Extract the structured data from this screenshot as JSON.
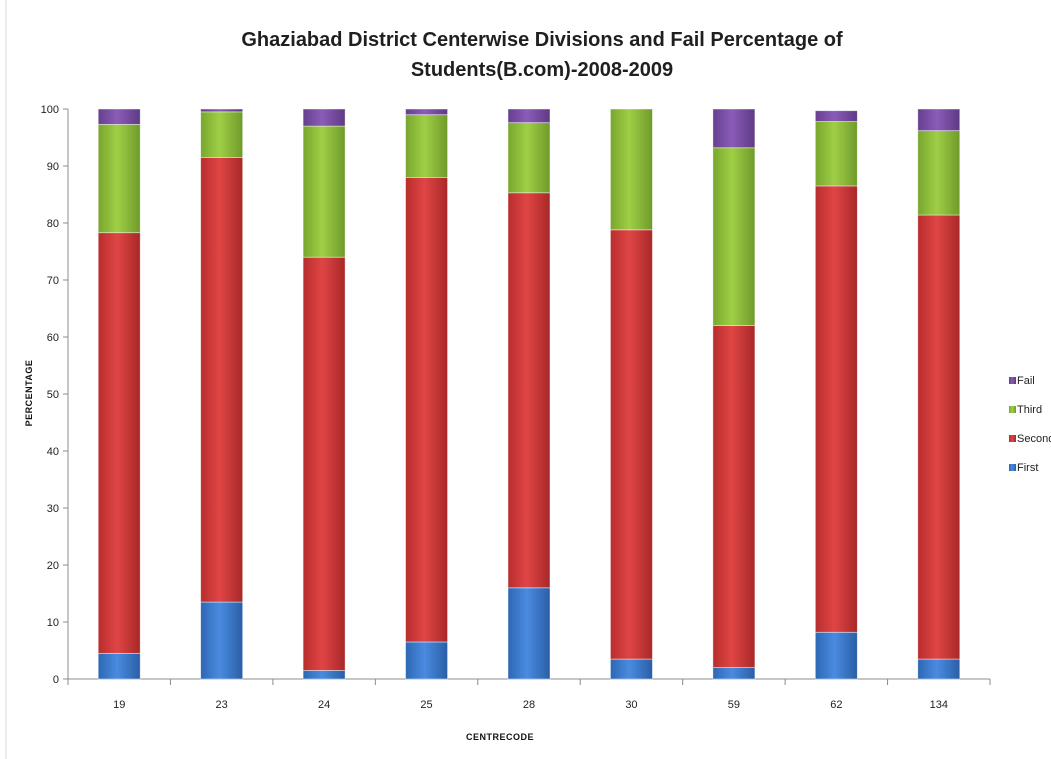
{
  "chart_data": {
    "type": "bar",
    "stacked": true,
    "title_line1": "Ghaziabad District Centerwise Divisions and Fail Percentage of",
    "title_line2": "Students(B.com)-2008-2009",
    "xlabel": "CENTRECODE",
    "ylabel": "PERCENTAGE",
    "ylim": [
      0,
      100
    ],
    "yticks": [
      0,
      10,
      20,
      30,
      40,
      50,
      60,
      70,
      80,
      90,
      100
    ],
    "grid": false,
    "legend_position": "right",
    "categories": [
      "19",
      "23",
      "24",
      "25",
      "28",
      "30",
      "59",
      "62",
      "134"
    ],
    "series": [
      {
        "name": "First",
        "color": "#3f7fd0",
        "values": [
          4.5,
          13.5,
          1.5,
          6.5,
          16.0,
          3.5,
          2.0,
          8.2,
          3.5
        ]
      },
      {
        "name": "Second",
        "color": "#d73a3a",
        "values": [
          73.8,
          78.0,
          72.5,
          81.5,
          69.3,
          75.3,
          60.0,
          78.3,
          77.9
        ]
      },
      {
        "name": "Third",
        "color": "#90bf3c",
        "values": [
          19.0,
          8.0,
          23.0,
          11.0,
          12.3,
          21.2,
          31.2,
          11.3,
          14.8
        ]
      },
      {
        "name": "Fail",
        "color": "#7b4ea3",
        "values": [
          2.7,
          0.5,
          3.0,
          1.0,
          2.4,
          0.0,
          6.8,
          1.9,
          3.8
        ]
      }
    ]
  }
}
